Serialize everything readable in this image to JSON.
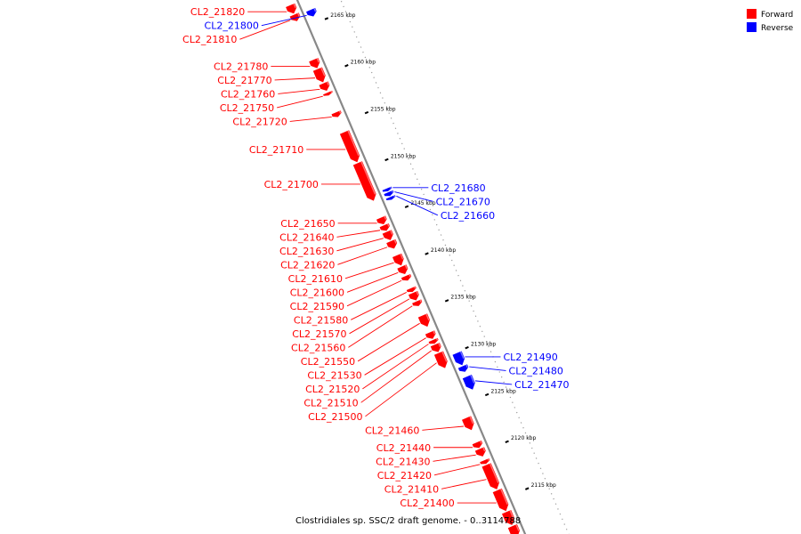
{
  "caption": "Clostridiales sp. SSC/2 draft genome. - 0..3114788",
  "legend": [
    {
      "label": "Forward",
      "color": "#ff0000"
    },
    {
      "label": "Reverse",
      "color": "#0000ff"
    }
  ],
  "colors": {
    "forward": "#ff0000",
    "reverse": "#0000ff",
    "backbone": "#888888"
  },
  "ticks": [
    {
      "kbp": 2165,
      "label": "2165 kbp"
    },
    {
      "kbp": 2160,
      "label": "2160 kbp"
    },
    {
      "kbp": 2155,
      "label": "2155 kbp"
    },
    {
      "kbp": 2150,
      "label": "2150 kbp"
    },
    {
      "kbp": 2145,
      "label": "2145 kbp"
    },
    {
      "kbp": 2140,
      "label": "2140 kbp"
    },
    {
      "kbp": 2135,
      "label": "2135 kbp"
    },
    {
      "kbp": 2130,
      "label": "2130 kbp"
    },
    {
      "kbp": 2125,
      "label": "2125 kbp"
    },
    {
      "kbp": 2120,
      "label": "2120 kbp"
    },
    {
      "kbp": 2115,
      "label": "2115 kbp"
    }
  ],
  "genes": [
    {
      "id": "CL2_21820",
      "strand": "forward",
      "start": 2167.6,
      "end": 2166.7
    },
    {
      "id": "CL2_21810",
      "strand": "forward",
      "start": 2166.6,
      "end": 2165.9
    },
    {
      "id": "CL2_21800",
      "strand": "reverse",
      "start": 2166.4,
      "end": 2165.7
    },
    {
      "id": "CL2_21780",
      "strand": "forward",
      "start": 2161.8,
      "end": 2160.9
    },
    {
      "id": "CL2_21770",
      "strand": "forward",
      "start": 2160.8,
      "end": 2159.4
    },
    {
      "id": "CL2_21760",
      "strand": "forward",
      "start": 2159.3,
      "end": 2158.5
    },
    {
      "id": "CL2_21750",
      "strand": "forward",
      "start": 2158.3,
      "end": 2158.0
    },
    {
      "id": "CL2_21720",
      "strand": "forward",
      "start": 2156.2,
      "end": 2155.7
    },
    {
      "id": "CL2_21710",
      "strand": "forward",
      "start": 2154.1,
      "end": 2150.9
    },
    {
      "id": "CL2_21700",
      "strand": "forward",
      "start": 2150.8,
      "end": 2146.8
    },
    {
      "id": "CL2_21680",
      "strand": "reverse",
      "start": 2147.4,
      "end": 2147.1
    },
    {
      "id": "CL2_21670",
      "strand": "reverse",
      "start": 2147.0,
      "end": 2146.6
    },
    {
      "id": "CL2_21660",
      "strand": "reverse",
      "start": 2146.5,
      "end": 2146.2
    },
    {
      "id": "CL2_21650",
      "strand": "forward",
      "start": 2145.0,
      "end": 2144.3
    },
    {
      "id": "CL2_21640",
      "strand": "forward",
      "start": 2144.2,
      "end": 2143.6
    },
    {
      "id": "CL2_21630",
      "strand": "forward",
      "start": 2143.5,
      "end": 2142.6
    },
    {
      "id": "CL2_21620",
      "strand": "forward",
      "start": 2142.5,
      "end": 2141.7
    },
    {
      "id": "CL2_21610",
      "strand": "forward",
      "start": 2141.0,
      "end": 2139.9
    },
    {
      "id": "CL2_21600",
      "strand": "forward",
      "start": 2139.8,
      "end": 2139.0
    },
    {
      "id": "CL2_21590",
      "strand": "forward",
      "start": 2138.8,
      "end": 2138.3
    },
    {
      "id": "CL2_21580",
      "strand": "forward",
      "start": 2137.5,
      "end": 2137.1
    },
    {
      "id": "CL2_21570",
      "strand": "forward",
      "start": 2137.0,
      "end": 2136.2
    },
    {
      "id": "CL2_21560",
      "strand": "forward",
      "start": 2136.1,
      "end": 2135.6
    },
    {
      "id": "CL2_21550",
      "strand": "forward",
      "start": 2134.6,
      "end": 2133.4
    },
    {
      "id": "CL2_21530",
      "strand": "forward",
      "start": 2132.8,
      "end": 2132.1
    },
    {
      "id": "CL2_21520",
      "strand": "forward",
      "start": 2132.0,
      "end": 2131.6
    },
    {
      "id": "CL2_21510",
      "strand": "forward",
      "start": 2131.5,
      "end": 2130.7
    },
    {
      "id": "CL2_21500",
      "strand": "forward",
      "start": 2130.6,
      "end": 2129.0
    },
    {
      "id": "CL2_21490",
      "strand": "reverse",
      "start": 2129.9,
      "end": 2128.6
    },
    {
      "id": "CL2_21480",
      "strand": "reverse",
      "start": 2128.5,
      "end": 2127.9
    },
    {
      "id": "CL2_21470",
      "strand": "reverse",
      "start": 2127.4,
      "end": 2126.0
    },
    {
      "id": "CL2_21460",
      "strand": "forward",
      "start": 2123.7,
      "end": 2122.4
    },
    {
      "id": "CL2_21440",
      "strand": "forward",
      "start": 2121.1,
      "end": 2120.5
    },
    {
      "id": "CL2_21430",
      "strand": "forward",
      "start": 2120.4,
      "end": 2119.6
    },
    {
      "id": "CL2_21420",
      "strand": "forward",
      "start": 2119.2,
      "end": 2118.8
    },
    {
      "id": "CL2_21410",
      "strand": "forward",
      "start": 2118.7,
      "end": 2116.1
    },
    {
      "id": "CL2_21400",
      "strand": "forward",
      "start": 2116.0,
      "end": 2113.8
    },
    {
      "id": "",
      "strand": "forward",
      "start": 2113.7,
      "end": 2112.3
    },
    {
      "id": "",
      "strand": "forward",
      "start": 2112.2,
      "end": 2111.0
    }
  ],
  "labels": [
    {
      "gene": "CL2_21820",
      "side": "left"
    },
    {
      "gene": "CL2_21810",
      "side": "left"
    },
    {
      "gene": "CL2_21800",
      "side": "left"
    },
    {
      "gene": "CL2_21780",
      "side": "left"
    },
    {
      "gene": "CL2_21770",
      "side": "left"
    },
    {
      "gene": "CL2_21760",
      "side": "left"
    },
    {
      "gene": "CL2_21750",
      "side": "left"
    },
    {
      "gene": "CL2_21720",
      "side": "left"
    },
    {
      "gene": "CL2_21710",
      "side": "left"
    },
    {
      "gene": "CL2_21700",
      "side": "left"
    },
    {
      "gene": "CL2_21650",
      "side": "left"
    },
    {
      "gene": "CL2_21640",
      "side": "left"
    },
    {
      "gene": "CL2_21630",
      "side": "left"
    },
    {
      "gene": "CL2_21620",
      "side": "left"
    },
    {
      "gene": "CL2_21610",
      "side": "left"
    },
    {
      "gene": "CL2_21600",
      "side": "left"
    },
    {
      "gene": "CL2_21590",
      "side": "left"
    },
    {
      "gene": "CL2_21580",
      "side": "left"
    },
    {
      "gene": "CL2_21570",
      "side": "left"
    },
    {
      "gene": "CL2_21560",
      "side": "left"
    },
    {
      "gene": "CL2_21550",
      "side": "left"
    },
    {
      "gene": "CL2_21530",
      "side": "left"
    },
    {
      "gene": "CL2_21520",
      "side": "left"
    },
    {
      "gene": "CL2_21510",
      "side": "left"
    },
    {
      "gene": "CL2_21500",
      "side": "left"
    },
    {
      "gene": "CL2_21460",
      "side": "left"
    },
    {
      "gene": "CL2_21440",
      "side": "left"
    },
    {
      "gene": "CL2_21430",
      "side": "left"
    },
    {
      "gene": "CL2_21420",
      "side": "left"
    },
    {
      "gene": "CL2_21410",
      "side": "left"
    },
    {
      "gene": "CL2_21400",
      "side": "left"
    },
    {
      "gene": "CL2_21680",
      "side": "right"
    },
    {
      "gene": "CL2_21670",
      "side": "right"
    },
    {
      "gene": "CL2_21660",
      "side": "right"
    },
    {
      "gene": "CL2_21490",
      "side": "right"
    },
    {
      "gene": "CL2_21480",
      "side": "right"
    },
    {
      "gene": "CL2_21470",
      "side": "right"
    }
  ]
}
